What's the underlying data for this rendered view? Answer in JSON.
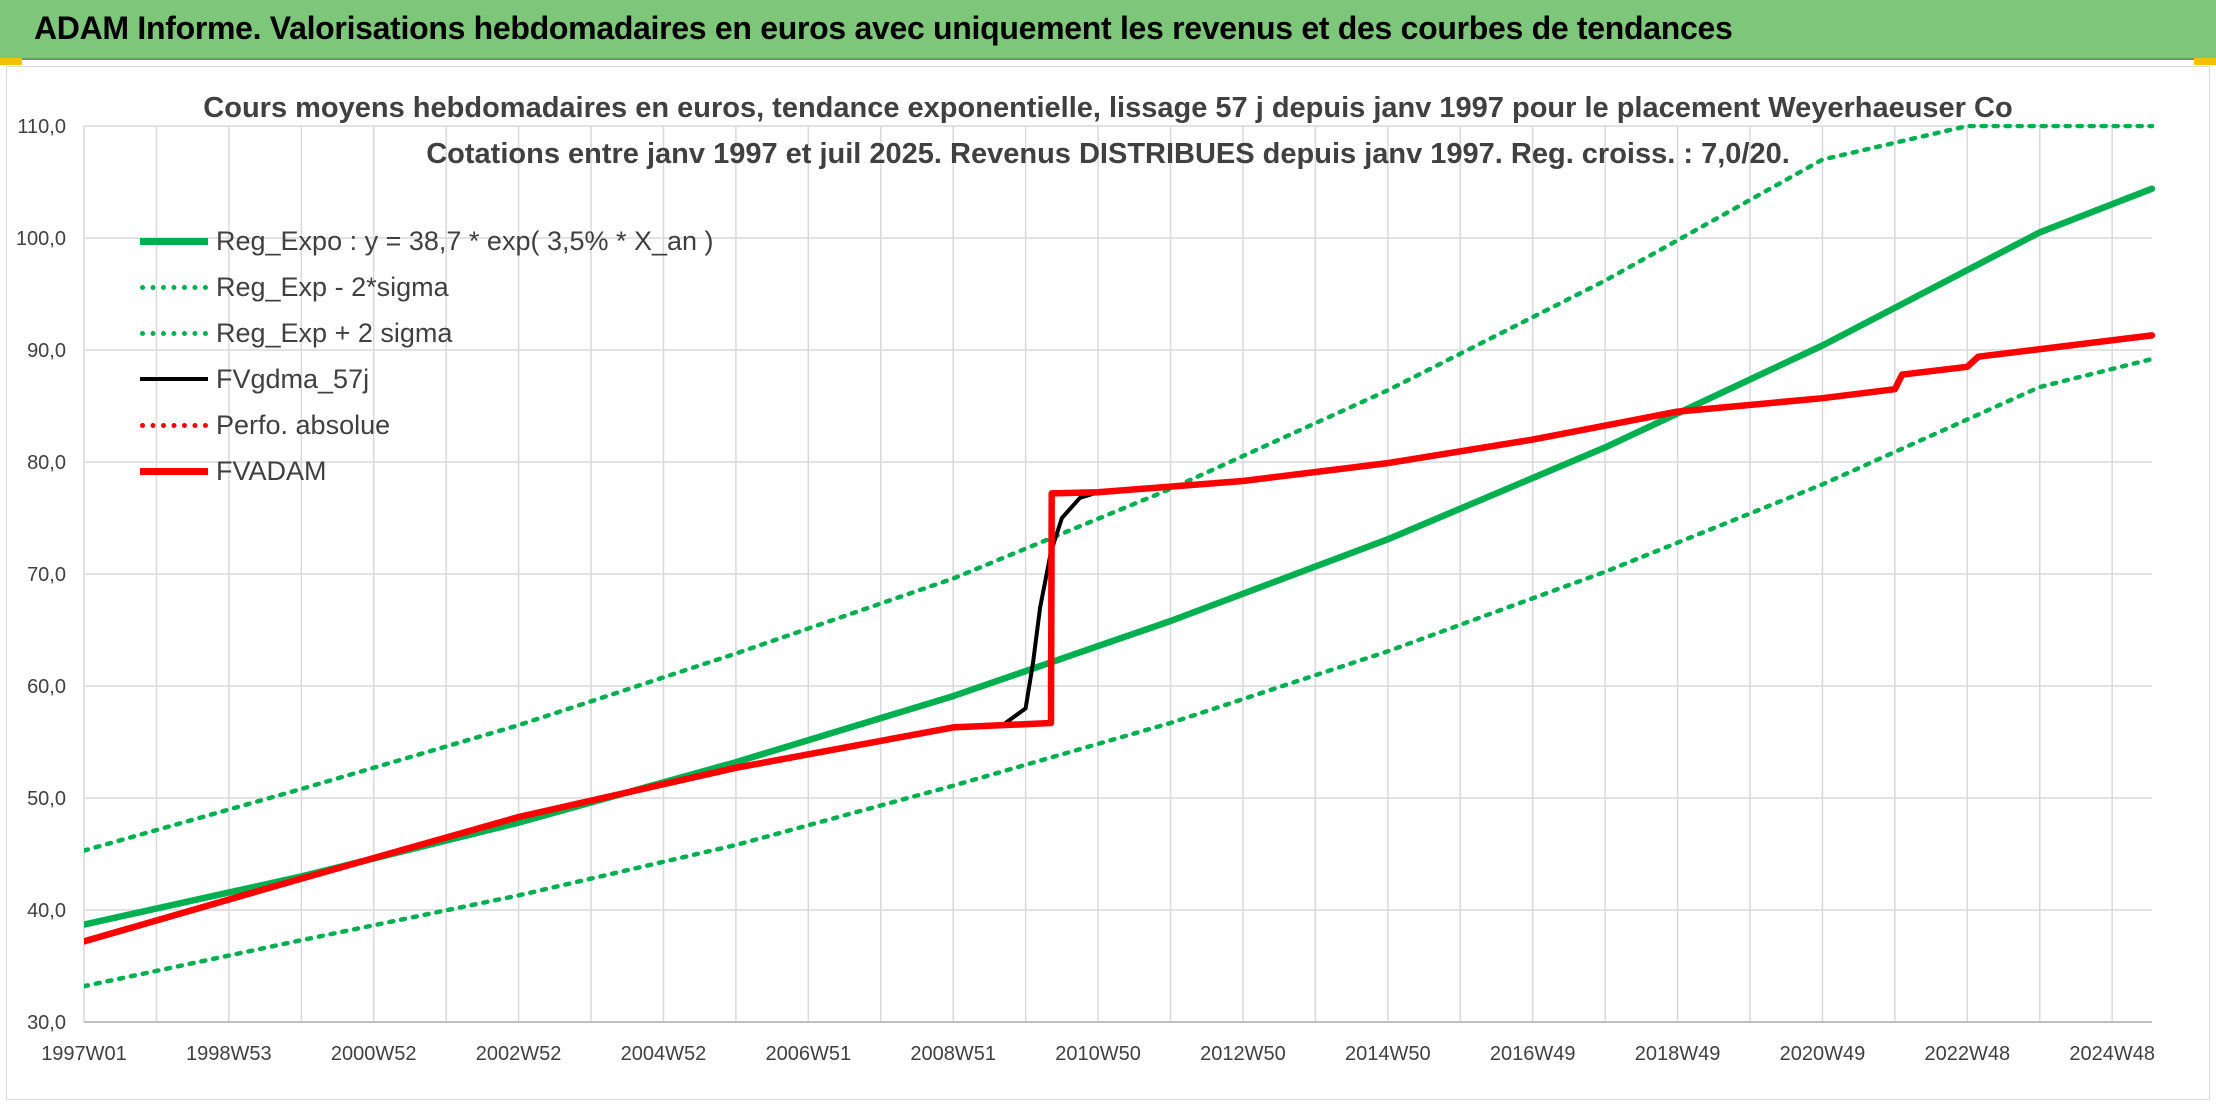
{
  "header": {
    "title": "ADAM Informe. Valorisations hebdomadaires en euros avec uniquement les revenus et des courbes de tendances"
  },
  "colors": {
    "header_bg": "#7dc67a",
    "trend_green": "#00b050",
    "valuation_red": "#ff0000",
    "smoothing_black": "#000000",
    "gridline": "#d9d9d9",
    "text": "#404040"
  },
  "chart_data": {
    "type": "line",
    "title": "Cours moyens hebdomadaires en euros, tendance exponentielle, lissage 57 j depuis janv 1997 pour le placement Weyerhaeuser Co",
    "subtitle": "Cotations entre janv 1997 et juil 2025. Revenus DISTRIBUES depuis janv 1997. Reg. croiss. : 7,0/20.",
    "xlabel": "",
    "ylabel": "",
    "x_range": [
      1997.0,
      2025.55
    ],
    "ylim": [
      30,
      110
    ],
    "y_ticks": [
      "30,0",
      "40,0",
      "50,0",
      "60,0",
      "70,0",
      "80,0",
      "90,0",
      "100,0",
      "110,0"
    ],
    "x_tick_labels": [
      "1997W01",
      "1998W53",
      "2000W52",
      "2002W52",
      "2004W52",
      "2006W51",
      "2008W51",
      "2010W50",
      "2012W50",
      "2014W50",
      "2016W49",
      "2018W49",
      "2020W49",
      "2022W48",
      "2024W48"
    ],
    "x_tick_positions": [
      1997.0,
      1999.0,
      2001.0,
      2003.0,
      2005.0,
      2007.0,
      2009.0,
      2011.0,
      2013.0,
      2015.0,
      2017.0,
      2019.0,
      2021.0,
      2023.0,
      2025.0
    ],
    "grid": true,
    "legend_position": "top-left",
    "series": [
      {
        "name": "Reg_Expo : y = 38,7 * exp( 3,5% *  X_an )",
        "style": "solid",
        "color": "#00b050",
        "x": [
          1997.0,
          2000.0,
          2003.0,
          2006.0,
          2009.0,
          2012.0,
          2015.0,
          2018.0,
          2021.0,
          2024.0,
          2025.55
        ],
        "y": [
          38.7,
          43.0,
          47.8,
          53.2,
          59.1,
          65.8,
          73.1,
          81.3,
          90.4,
          100.5,
          104.4
        ]
      },
      {
        "name": "Reg_Exp - 2*sigma",
        "style": "dotted",
        "color": "#00b050",
        "x": [
          1997.0,
          2000.0,
          2003.0,
          2006.0,
          2009.0,
          2012.0,
          2015.0,
          2018.0,
          2021.0,
          2024.0,
          2025.55
        ],
        "y": [
          33.2,
          37.3,
          41.3,
          45.8,
          51.1,
          56.7,
          63.1,
          70.2,
          78.0,
          86.7,
          89.2
        ]
      },
      {
        "name": "Reg_Exp + 2 sigma",
        "style": "dotted",
        "color": "#00b050",
        "x": [
          1997.0,
          2000.0,
          2003.0,
          2006.0,
          2009.0,
          2012.0,
          2015.0,
          2018.0,
          2021.0,
          2023.0,
          2025.55
        ],
        "y": [
          45.3,
          50.8,
          56.5,
          62.9,
          69.6,
          77.6,
          86.4,
          96.2,
          107.0,
          110.0,
          110.0
        ]
      },
      {
        "name": "FVgdma_57j",
        "style": "solid",
        "color": "#000000",
        "x": [
          1997.0,
          2000.0,
          2003.0,
          2006.0,
          2009.0,
          2009.7,
          2010.0,
          2010.1,
          2010.2,
          2010.35,
          2010.5,
          2010.75,
          2011.0,
          2013.0,
          2015.0,
          2017.0,
          2019.0,
          2021.0,
          2022.0,
          2022.1,
          2023.0,
          2023.15,
          2025.55
        ],
        "y": [
          37.2,
          42.8,
          48.3,
          52.7,
          56.3,
          56.6,
          58.0,
          62.0,
          67.0,
          72.0,
          75.0,
          76.8,
          77.3,
          78.3,
          79.9,
          82.0,
          84.5,
          85.7,
          86.5,
          87.8,
          88.5,
          89.4,
          91.3
        ]
      },
      {
        "name": "Perfo. absolue",
        "style": "dotted",
        "color": "#ff0000",
        "x": [
          1997.0,
          2000.0,
          2003.0,
          2006.0,
          2009.0,
          2010.35,
          2010.36,
          2011.0,
          2013.0,
          2015.0,
          2017.0,
          2019.0,
          2021.0,
          2022.0,
          2022.1,
          2023.0,
          2023.15,
          2025.55
        ],
        "y": [
          37.2,
          42.8,
          48.3,
          52.7,
          56.3,
          56.7,
          77.2,
          77.3,
          78.3,
          79.9,
          82.0,
          84.5,
          85.7,
          86.5,
          87.8,
          88.5,
          89.4,
          91.3
        ]
      },
      {
        "name": "FVADAM",
        "style": "solid",
        "color": "#ff0000",
        "x": [
          1997.0,
          2000.0,
          2003.0,
          2006.0,
          2009.0,
          2010.35,
          2010.36,
          2011.0,
          2013.0,
          2015.0,
          2017.0,
          2019.0,
          2021.0,
          2022.0,
          2022.1,
          2023.0,
          2023.15,
          2025.55
        ],
        "y": [
          37.2,
          42.8,
          48.3,
          52.7,
          56.3,
          56.7,
          77.2,
          77.3,
          78.3,
          79.9,
          82.0,
          84.5,
          85.7,
          86.5,
          87.8,
          88.5,
          89.4,
          91.3
        ]
      }
    ]
  }
}
